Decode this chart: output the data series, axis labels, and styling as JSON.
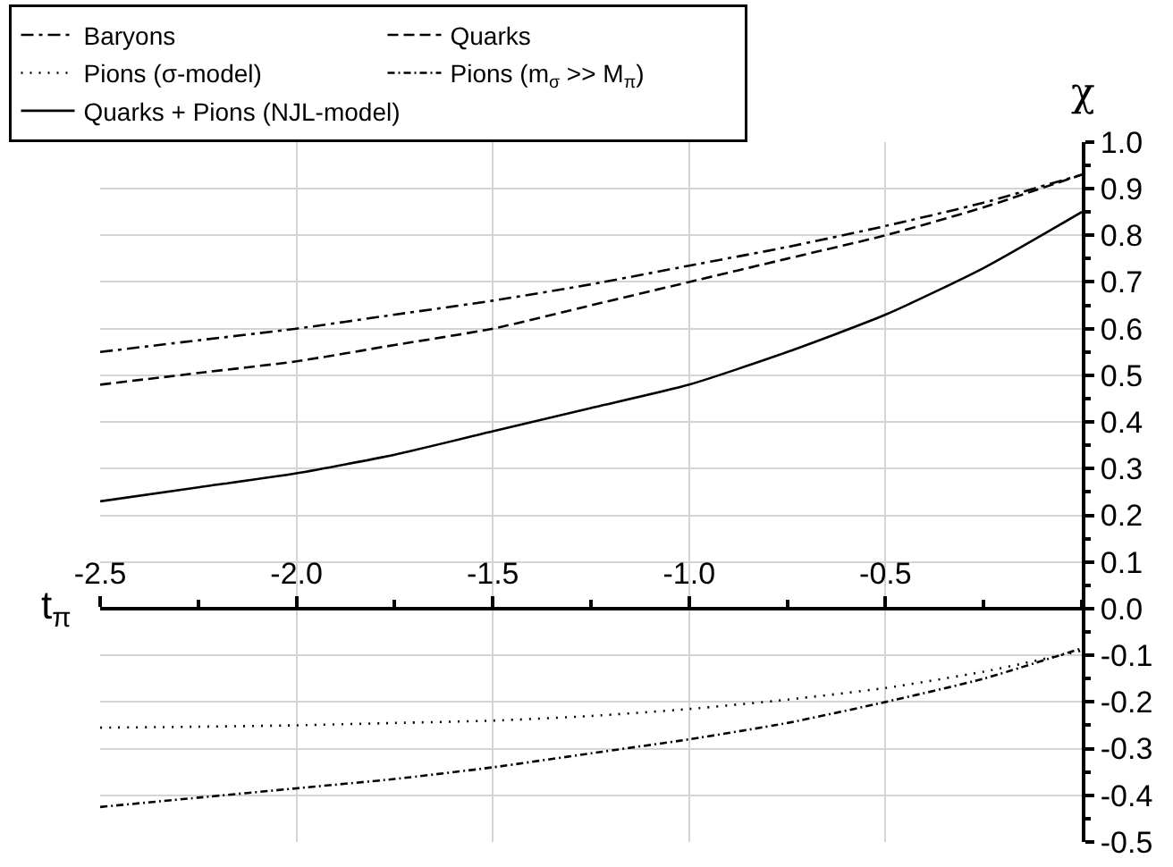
{
  "chart_data": {
    "type": "line",
    "xlabel": "t$_{π}$",
    "ylabel": "χ",
    "x": [
      -2.5,
      -2.25,
      -2.0,
      -1.75,
      -1.5,
      -1.25,
      -1.0,
      -0.75,
      -0.5,
      -0.25,
      0
    ],
    "series": [
      {
        "name": "Baryons",
        "color": "#000000",
        "line_style": "dashdot",
        "values": [
          0.55,
          0.575,
          0.6,
          0.63,
          0.66,
          0.695,
          0.735,
          0.775,
          0.82,
          0.87,
          0.93
        ]
      },
      {
        "name": "Quarks",
        "color": "#000000",
        "line_style": "dashed",
        "values": [
          0.48,
          0.505,
          0.53,
          0.565,
          0.6,
          0.65,
          0.7,
          0.75,
          0.8,
          0.86,
          0.93
        ]
      },
      {
        "name": "Pions (σ-model)",
        "color": "#000000",
        "line_style": "dotted",
        "values": [
          -0.255,
          -0.253,
          -0.25,
          -0.245,
          -0.24,
          -0.23,
          -0.215,
          -0.195,
          -0.17,
          -0.135,
          -0.09
        ]
      },
      {
        "name": "Pions (m$_{σ}$ >> M$_{π}$)",
        "color": "#000000",
        "line_style": "longdashdot",
        "values": [
          -0.425,
          -0.405,
          -0.385,
          -0.365,
          -0.34,
          -0.31,
          -0.28,
          -0.245,
          -0.2,
          -0.15,
          -0.085
        ]
      },
      {
        "name": "Quarks + Pions (NJL-model)",
        "color": "#000000",
        "line_style": "solid",
        "values": [
          0.23,
          0.26,
          0.29,
          0.33,
          0.38,
          0.43,
          0.48,
          0.55,
          0.63,
          0.73,
          0.85
        ]
      }
    ],
    "xlim": [
      -2.5,
      0
    ],
    "ylim": [
      -0.5,
      1.0
    ],
    "xticks": [
      -2.5,
      {
        "value": -2,
        "label": "-2.0"
      },
      -1.5,
      {
        "value": -1,
        "label": "-1.0"
      },
      -0.5
    ],
    "yticks": [
      -0.5,
      -0.4,
      -0.3,
      -0.2,
      -0.1,
      {
        "value": 0,
        "label": "0.0"
      },
      0.1,
      0.2,
      0.3,
      0.4,
      0.5,
      0.6,
      0.7,
      0.8,
      0.9,
      {
        "value": 1,
        "label": "1.0"
      }
    ],
    "grid": true,
    "legend": "top left",
    "marker": "none"
  }
}
